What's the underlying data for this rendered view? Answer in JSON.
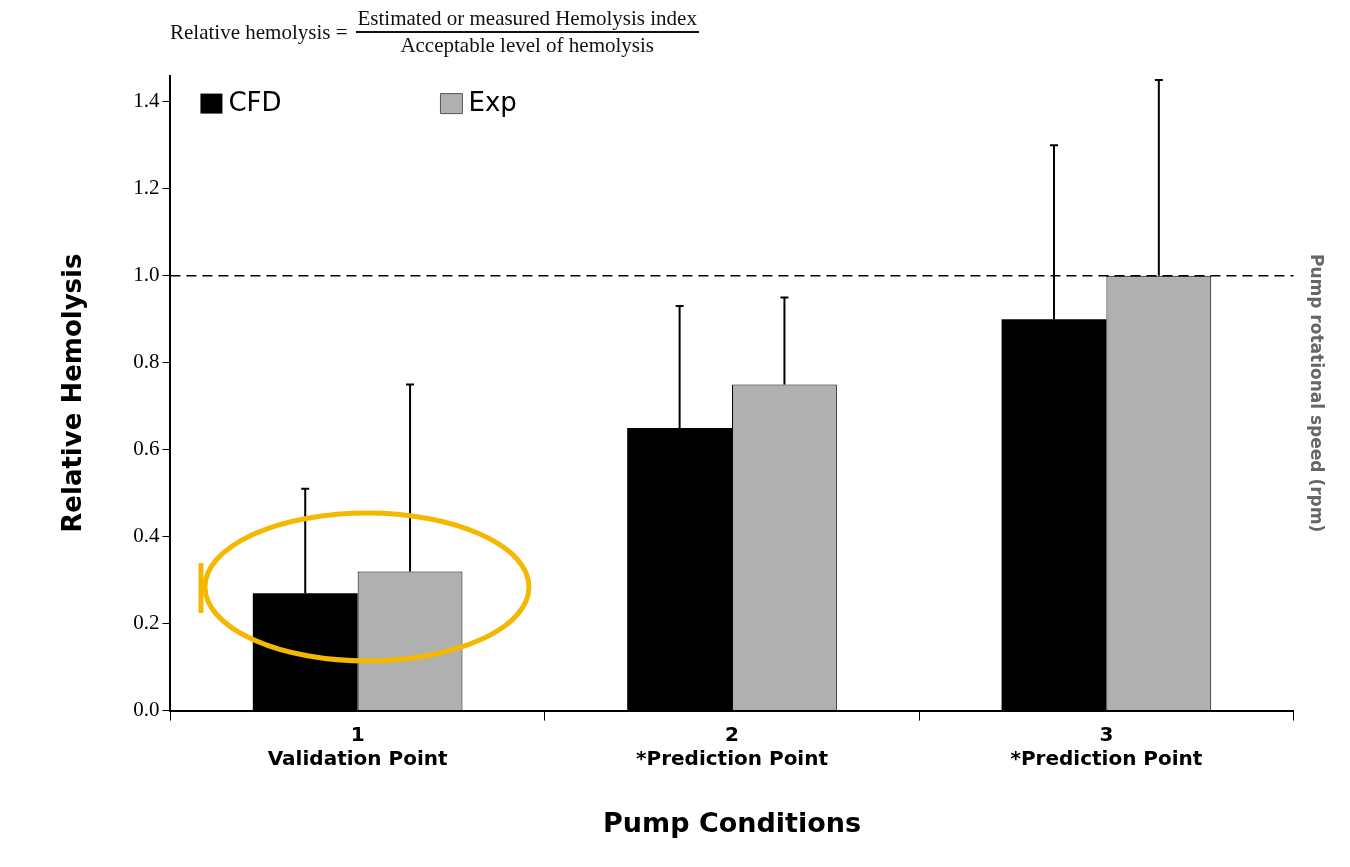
{
  "chart_data": {
    "type": "bar",
    "title": "Relative hemolysis =",
    "annotations": [
      "Estimated or measured Hemolysis index",
      "Acceptable level of hemolysis"
    ],
    "xlabel": "Pump Conditions",
    "ylabel": "Relative Hemolysis",
    "y2label": "Pump rotational speed (rpm)",
    "categories": [
      "1\nValidation Point",
      "2\n*Prediction Point",
      "3\n*Prediction Point"
    ],
    "series": [
      {
        "name": "CFD",
        "color": "#000000",
        "values": [
          0.27,
          0.65,
          0.9
        ],
        "errors": [
          [
            0.27,
            0.51
          ],
          [
            0.65,
            0.93
          ],
          [
            0.9,
            1.3
          ]
        ]
      },
      {
        "name": "Exp",
        "color": "#b0b0b0",
        "values": [
          0.32,
          0.75,
          1.0
        ],
        "errors": [
          [
            0.32,
            0.75
          ],
          [
            0.75,
            0.95
          ],
          [
            1.0,
            1.45
          ]
        ]
      }
    ],
    "ylim": [
      0,
      1.46
    ],
    "yticks": [
      {
        "value": 0,
        "label": "0.0"
      },
      0.2,
      0.4,
      0.6,
      0.8,
      {
        "value": 1,
        "label": "1.0"
      },
      1.2,
      1.4
    ],
    "ref_lines": [
      {
        "axis": "y",
        "value": 1.0,
        "color": "#000000",
        "line_style": "dashed"
      }
    ],
    "grid": false,
    "legend": "top left"
  }
}
